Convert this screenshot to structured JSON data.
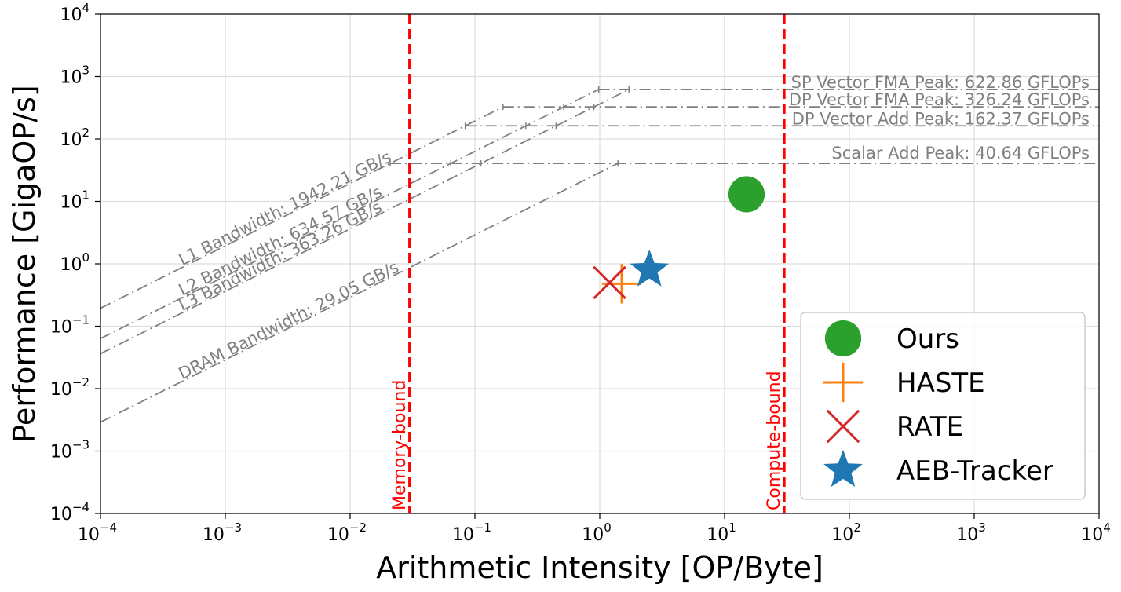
{
  "chart_data": {
    "type": "scatter",
    "title": "",
    "xlabel": "Arithmetic Intensity [OP/Byte]",
    "ylabel": "Performance [GigaOP/s]",
    "xscale": "log",
    "yscale": "log",
    "xlim": [
      0.0001,
      10000
    ],
    "ylim": [
      0.0001,
      10000
    ],
    "grid": true,
    "x_ticks": [
      {
        "value": 0.0001,
        "base": "10",
        "exp": "−4"
      },
      {
        "value": 0.001,
        "base": "10",
        "exp": "−3"
      },
      {
        "value": 0.01,
        "base": "10",
        "exp": "−2"
      },
      {
        "value": 0.1,
        "base": "10",
        "exp": "−1"
      },
      {
        "value": 1,
        "base": "10",
        "exp": "0"
      },
      {
        "value": 10,
        "base": "10",
        "exp": "1"
      },
      {
        "value": 100,
        "base": "10",
        "exp": "2"
      },
      {
        "value": 1000,
        "base": "10",
        "exp": "3"
      },
      {
        "value": 10000,
        "base": "10",
        "exp": "4"
      }
    ],
    "y_ticks": [
      {
        "value": 0.0001,
        "base": "10",
        "exp": "−4"
      },
      {
        "value": 0.001,
        "base": "10",
        "exp": "−3"
      },
      {
        "value": 0.01,
        "base": "10",
        "exp": "−2"
      },
      {
        "value": 0.1,
        "base": "10",
        "exp": "−1"
      },
      {
        "value": 1,
        "base": "10",
        "exp": "0"
      },
      {
        "value": 10,
        "base": "10",
        "exp": "1"
      },
      {
        "value": 100,
        "base": "10",
        "exp": "2"
      },
      {
        "value": 1000,
        "base": "10",
        "exp": "3"
      },
      {
        "value": 10000,
        "base": "10",
        "exp": "4"
      }
    ],
    "compute_roofs": [
      {
        "label": "SP Vector FMA Peak: 622.86 GFLOPs",
        "gflops": 622.86
      },
      {
        "label": "DP Vector FMA Peak: 326.24 GFLOPs",
        "gflops": 326.24
      },
      {
        "label": "DP Vector Add Peak: 162.37 GFLOPs",
        "gflops": 162.37
      },
      {
        "label": "Scalar Add Peak: 40.64 GFLOPs",
        "gflops": 40.64
      }
    ],
    "bandwidth_roofs": [
      {
        "label": "L1 Bandwidth: 1942.21 GB/s",
        "gbps": 1942.21
      },
      {
        "label": "L2 Bandwidth: 634.57 GB/s",
        "gbps": 634.57
      },
      {
        "label": "L3 Bandwidth: 363.26 GB/s",
        "gbps": 363.26
      },
      {
        "label": "DRAM Bandwidth: 29.05 GB/s",
        "gbps": 29.05
      }
    ],
    "roof_color": "#808080",
    "bounds": [
      {
        "label": "Memory-bound",
        "x": 0.03
      },
      {
        "label": "Compute-bound",
        "x": 30
      }
    ],
    "bound_color": "#ff0000",
    "series": [
      {
        "name": "Ours",
        "x": 15,
        "y": 13,
        "marker": "circle",
        "color": "#2ca02c"
      },
      {
        "name": "HASTE",
        "x": 1.5,
        "y": 0.48,
        "marker": "plus",
        "color": "#ff7f0e"
      },
      {
        "name": "RATE",
        "x": 1.2,
        "y": 0.5,
        "marker": "x",
        "color": "#d62728"
      },
      {
        "name": "AEB-Tracker",
        "x": 2.5,
        "y": 0.8,
        "marker": "star",
        "color": "#1f77b4"
      }
    ],
    "legend_position": "lower-right"
  }
}
